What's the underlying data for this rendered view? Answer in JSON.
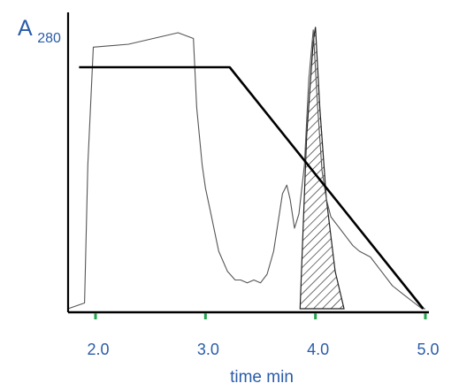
{
  "chart_data": {
    "type": "line",
    "title": "",
    "ylabel": "A",
    "ylabel_subscript": "280",
    "xlabel": "time min",
    "xlim": [
      1.75,
      5.05
    ],
    "ylim": [
      0,
      1.0
    ],
    "x_ticks": [
      2.0,
      3.0,
      4.0,
      5.0
    ],
    "tick_labels": [
      "2.0",
      "3.0",
      "4.0",
      "5.0"
    ],
    "grid": false,
    "legend": "none",
    "series": [
      {
        "kind": "absorbance-trace",
        "x": [
          1.75,
          1.9,
          1.93,
          1.98,
          2.3,
          2.75,
          2.89,
          2.92,
          2.97,
          3.0,
          3.05,
          3.12,
          3.2,
          3.27,
          3.32,
          3.38,
          3.44,
          3.5,
          3.56,
          3.62,
          3.66,
          3.7,
          3.74,
          3.77,
          3.81,
          3.85,
          3.9,
          3.94,
          3.98,
          4.02,
          4.06,
          4.1,
          4.14,
          4.18,
          4.22,
          4.28,
          4.34,
          4.4,
          4.5,
          4.6,
          4.7,
          4.8,
          4.9,
          4.97,
          5.0
        ],
        "y": [
          0.0,
          0.02,
          0.5,
          0.91,
          0.92,
          0.96,
          0.94,
          0.7,
          0.5,
          0.42,
          0.33,
          0.2,
          0.13,
          0.1,
          0.1,
          0.09,
          0.1,
          0.09,
          0.12,
          0.2,
          0.3,
          0.4,
          0.43,
          0.38,
          0.28,
          0.33,
          0.5,
          0.8,
          0.97,
          0.7,
          0.48,
          0.38,
          0.32,
          0.3,
          0.28,
          0.25,
          0.22,
          0.2,
          0.18,
          0.13,
          0.08,
          0.05,
          0.02,
          0.0,
          0.0
        ]
      },
      {
        "kind": "gradient",
        "x": [
          1.85,
          3.22,
          4.98
        ],
        "y": [
          0.84,
          0.84,
          0.0
        ]
      }
    ],
    "shaded_peak": {
      "pattern": "diagonal-hatch",
      "x": [
        3.86,
        3.92,
        3.98,
        4.0,
        4.04,
        4.1,
        4.18,
        4.26
      ],
      "y": [
        0.0,
        0.6,
        0.93,
        0.98,
        0.7,
        0.38,
        0.13,
        0.0
      ]
    },
    "colors": {
      "axis": "#000000",
      "trace": "#555555",
      "gradient": "#000000",
      "tick_marks": "#1ea64a",
      "text": "#2a5ca8"
    }
  }
}
